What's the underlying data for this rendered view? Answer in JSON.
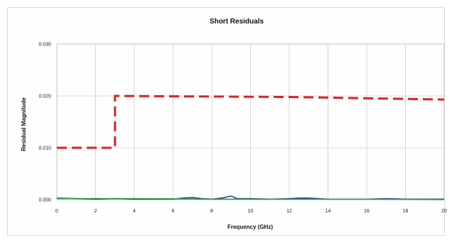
{
  "chart_data": {
    "type": "line",
    "title": "Short Residuals",
    "xlabel": "Frequency (GHz)",
    "ylabel": "Residual Magnitude",
    "xlim": [
      0,
      20
    ],
    "ylim": [
      0,
      0.03
    ],
    "x_ticks": [
      "0",
      "2",
      "4",
      "6",
      "8",
      "10",
      "12",
      "14",
      "16",
      "18",
      "20"
    ],
    "y_ticks": [
      "0.000",
      "0.010",
      "0.020",
      "0.030"
    ],
    "grid": true,
    "legend": "none",
    "series": [
      {
        "color": "#e02020",
        "style": "dashed",
        "points": [
          [
            0,
            0.01
          ],
          [
            3,
            0.01
          ],
          [
            3,
            0.02
          ],
          [
            12,
            0.0198
          ],
          [
            20,
            0.0193
          ]
        ]
      },
      {
        "color": "#2a3f8f",
        "style": "solid",
        "points": [
          [
            0,
            0.0003
          ],
          [
            1,
            0.0002
          ],
          [
            2,
            0.0001
          ],
          [
            3,
            0.0002
          ],
          [
            4,
            0.0001
          ],
          [
            5,
            0.0001
          ],
          [
            6,
            0.0001
          ],
          [
            6.5,
            0.0003
          ],
          [
            7,
            0.0004
          ],
          [
            7.5,
            0.0002
          ],
          [
            8,
            0.0001
          ],
          [
            8.5,
            0.0003
          ],
          [
            9,
            0.0007
          ],
          [
            9.3,
            0.0002
          ],
          [
            10,
            0.0002
          ],
          [
            11,
            0.0001
          ],
          [
            12,
            0.0002
          ],
          [
            12.5,
            0.0003
          ],
          [
            13,
            0.0003
          ],
          [
            13.5,
            0.0002
          ],
          [
            14,
            0.0001
          ],
          [
            15,
            0.0001
          ],
          [
            16,
            0.0001
          ],
          [
            17,
            0.0002
          ],
          [
            18,
            0.0001
          ],
          [
            19,
            0.0001
          ],
          [
            20,
            0.0001
          ]
        ]
      },
      {
        "color": "#2e9e46",
        "style": "solid",
        "points": [
          [
            0,
            0.0002
          ],
          [
            4,
            0.0002
          ],
          [
            8,
            0.0001
          ],
          [
            12,
            0.0001
          ],
          [
            16,
            0.0001
          ],
          [
            20,
            0.0
          ]
        ]
      }
    ]
  }
}
